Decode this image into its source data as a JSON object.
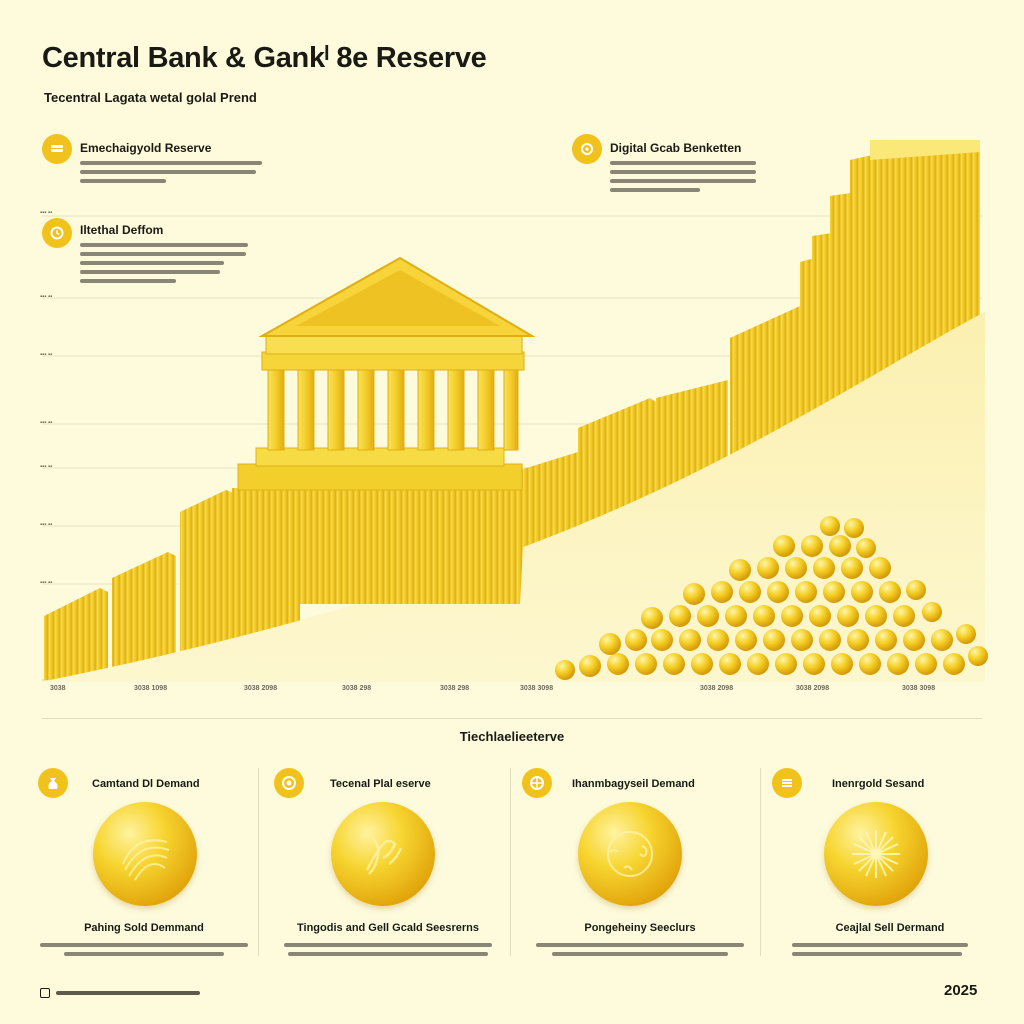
{
  "header": {
    "title": "Central  Bank & Gankˡ 8e Reserve",
    "subtitle": "Tecentral Laɡata wetal ɡolal Prend"
  },
  "callouts": [
    {
      "title": "Emechaigyold Reserve",
      "icon": "coin-stack-icon"
    },
    {
      "title": "Digital Gcab Benketten",
      "icon": "gear-icon"
    },
    {
      "title": "Iltethal Deffom",
      "icon": "clock-icon"
    }
  ],
  "chart": {
    "x_ticks": [
      "3038",
      "3038 1098",
      "3038 2098",
      "3038 298",
      "3038 298",
      "3038 3098",
      "3038 2098",
      "3038 2098",
      "3038 3098"
    ]
  },
  "section_title": "Tiechlaelieeterve",
  "cards": [
    {
      "title": "Camtand Dl Demand",
      "caption": "Pahing Sold Demmand",
      "icon": "gold-bag-icon"
    },
    {
      "title": "Tecenal Plal eserve",
      "caption": "Tingodis and Gell Gcald Seesrerns",
      "icon": "target-icon"
    },
    {
      "title": "Ihanmbagyseil Demand",
      "caption": "Pongeheiny Seeclurs",
      "icon": "globe-target-icon"
    },
    {
      "title": "Inenrgold Sesand",
      "caption": "Ceajlal Sell Dermand",
      "icon": "sun-burst-icon"
    }
  ],
  "footer": {
    "year": "2025"
  },
  "colors": {
    "background": "#fdfbdc",
    "gold": "#f2c21c",
    "deep_gold": "#d9a10a"
  }
}
